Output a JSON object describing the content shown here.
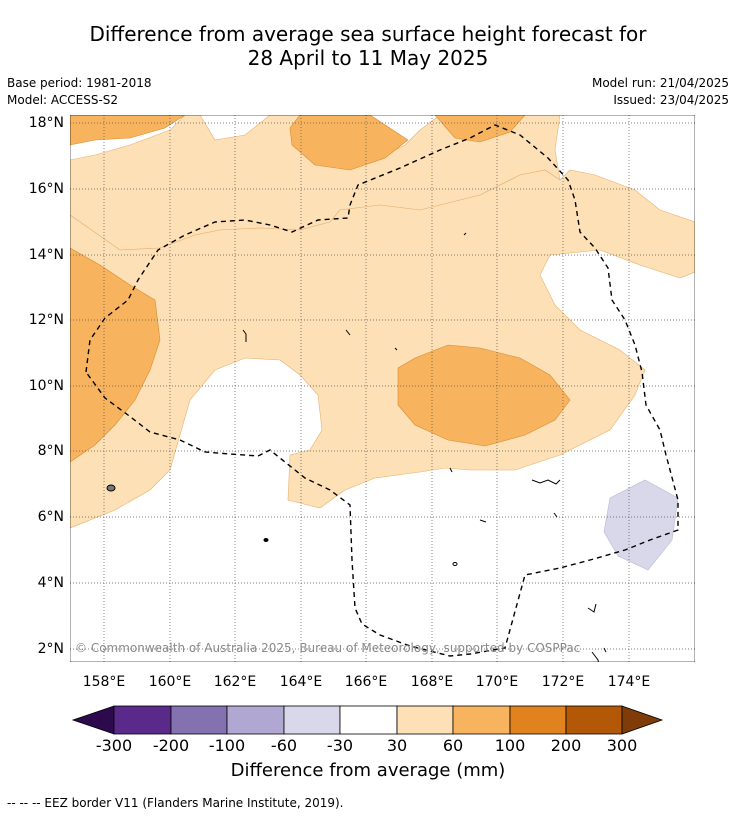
{
  "title": {
    "line1": "Difference from average sea surface height forecast for",
    "line2": "28 April to 11 May 2025"
  },
  "meta": {
    "base_period": "Base period: 1981-2018",
    "model": "Model: ACCESS-S2",
    "model_run": "Model run: 21/04/2025",
    "issued": "Issued: 23/04/2025"
  },
  "map": {
    "lat_labels": [
      "18°N",
      "16°N",
      "14°N",
      "12°N",
      "10°N",
      "8°N",
      "6°N",
      "4°N",
      "2°N"
    ],
    "lon_labels": [
      "158°E",
      "160°E",
      "162°E",
      "164°E",
      "166°E",
      "168°E",
      "170°E",
      "172°E",
      "174°E"
    ],
    "copyright": "© Commonwealth of Australia 2025, Bureau of Meteorology, supported by COSPPac"
  },
  "colorbar": {
    "labels": [
      "-300",
      "-200",
      "-100",
      "-60",
      "-30",
      "30",
      "60",
      "100",
      "200",
      "300"
    ],
    "title": "Difference from average (mm)",
    "colors": {
      "below_-300": "#2d0a4e",
      "-300_-200": "#5a2a8a",
      "-200_-100": "#8472b0",
      "-100_-60": "#b0a8d2",
      "-60_-30": "#d8d8ea",
      "-30_30": "#ffffff",
      "30_60": "#fde0b5",
      "60_100": "#f8b35e",
      "100_200": "#e0821e",
      "200_300": "#b35806",
      "above_300": "#7f3b08"
    }
  },
  "footer": {
    "legend_text": "--  --  -- EEZ border V11 (Flanders Marine Institute, 2019)."
  }
}
